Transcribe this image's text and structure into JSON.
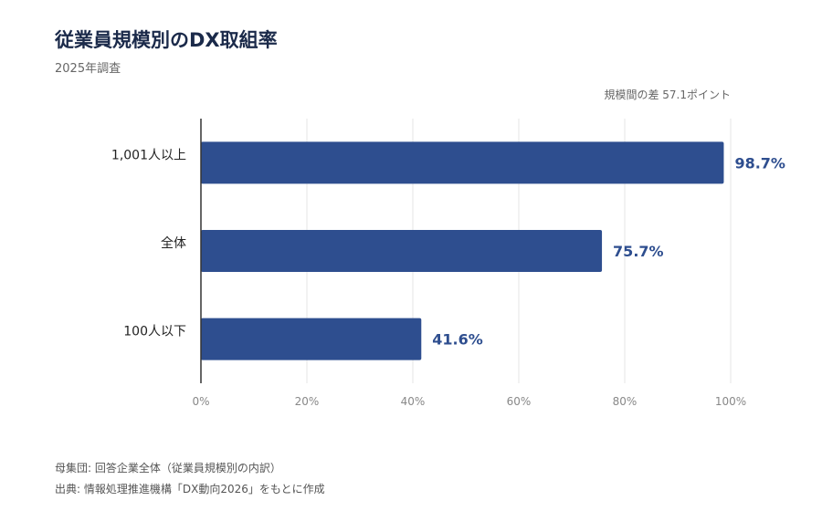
{
  "chart_data": {
    "type": "bar",
    "orientation": "horizontal",
    "title": "従業員規模別のDX取組率",
    "subtitle": "2025年調査",
    "annotation": "規模間の差 57.1ポイント",
    "categories": [
      "1,001人以上",
      "全体",
      "100人以下"
    ],
    "values": [
      98.7,
      75.7,
      41.6
    ],
    "value_labels": [
      "98.7%",
      "75.7%",
      "41.6%"
    ],
    "xlim": [
      0,
      100
    ],
    "xticks": [
      0,
      20,
      40,
      60,
      80,
      100
    ],
    "xtick_labels": [
      "0%",
      "20%",
      "40%",
      "60%",
      "80%",
      "100%"
    ],
    "grid": "vertical",
    "bar_color": "#2e4e8f",
    "label_color": "#2e4e8f"
  },
  "footnotes": {
    "population": "母集団: 回答企業全体（従業員規模別の内訳）",
    "source": "出典: 情報処理推進機構「DX動向2026」をもとに作成"
  }
}
